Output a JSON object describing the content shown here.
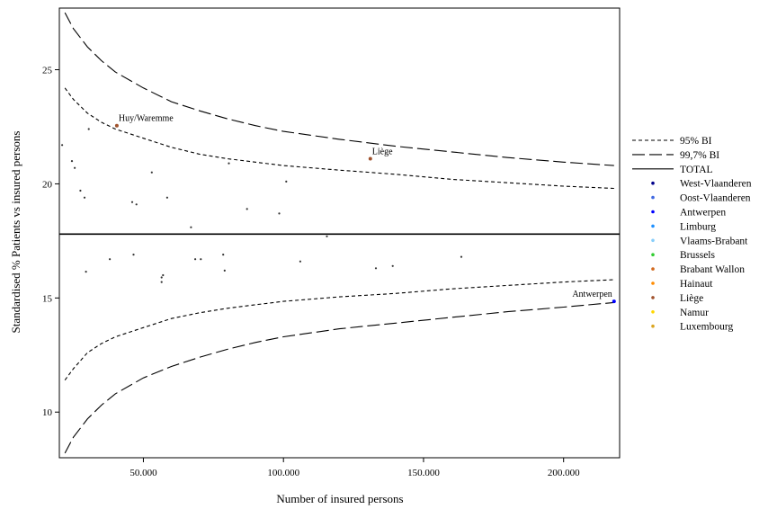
{
  "chart_data": {
    "type": "scatter",
    "title": "",
    "xlabel": "Number of insured persons",
    "ylabel": "Standardised % Patients vs insured persons",
    "xlim": [
      20000,
      220000
    ],
    "ylim": [
      8,
      27.7
    ],
    "x_ticks": [
      50000,
      100000,
      150000,
      200000
    ],
    "x_tick_labels": [
      "50.000",
      "100.000",
      "150.000",
      "200.000"
    ],
    "y_ticks": [
      10,
      15,
      20,
      25
    ],
    "y_tick_labels": [
      "10",
      "15",
      "20",
      "25"
    ],
    "grid": false,
    "legend_position": "right",
    "total": 17.8,
    "band_x": [
      22000,
      25000,
      30000,
      35000,
      40000,
      50000,
      60000,
      70000,
      80000,
      90000,
      100000,
      120000,
      140000,
      160000,
      180000,
      200000,
      218000
    ],
    "bands": {
      "upper_95": [
        24.2,
        23.7,
        23.1,
        22.7,
        22.4,
        22.0,
        21.6,
        21.3,
        21.1,
        20.95,
        20.8,
        20.6,
        20.42,
        20.2,
        20.05,
        19.9,
        19.8
      ],
      "lower_95": [
        11.4,
        11.9,
        12.6,
        13.0,
        13.3,
        13.7,
        14.1,
        14.35,
        14.55,
        14.7,
        14.85,
        15.05,
        15.2,
        15.4,
        15.55,
        15.7,
        15.8
      ],
      "upper_997": [
        27.5,
        26.8,
        26.0,
        25.4,
        24.9,
        24.2,
        23.6,
        23.2,
        22.85,
        22.55,
        22.3,
        21.95,
        21.65,
        21.4,
        21.15,
        20.95,
        20.8
      ],
      "lower_997": [
        8.2,
        8.9,
        9.7,
        10.3,
        10.8,
        11.5,
        12.0,
        12.4,
        12.75,
        13.05,
        13.3,
        13.65,
        13.9,
        14.15,
        14.4,
        14.6,
        14.8
      ]
    },
    "legend": [
      {
        "label": "95% BI",
        "kind": "line",
        "dash": "short"
      },
      {
        "label": "99,7% BI",
        "kind": "line",
        "dash": "long"
      },
      {
        "label": "TOTAL",
        "kind": "line",
        "dash": "solid"
      },
      {
        "label": "West-Vlaanderen",
        "kind": "point",
        "color": "#00008b"
      },
      {
        "label": "Oost-Vlaanderen",
        "kind": "point",
        "color": "#4169e1"
      },
      {
        "label": "Antwerpen",
        "kind": "point",
        "color": "#0000ff"
      },
      {
        "label": "Limburg",
        "kind": "point",
        "color": "#1e90ff"
      },
      {
        "label": "Vlaams-Brabant",
        "kind": "point",
        "color": "#87cefa"
      },
      {
        "label": "Brussels",
        "kind": "point",
        "color": "#32cd32"
      },
      {
        "label": "Brabant Wallon",
        "kind": "point",
        "color": "#d2691e"
      },
      {
        "label": "Hainaut",
        "kind": "point",
        "color": "#ff8c00"
      },
      {
        "label": "Liège",
        "kind": "point",
        "color": "#a0522d"
      },
      {
        "label": "Namur",
        "kind": "point",
        "color": "#ffd700"
      },
      {
        "label": "Luxembourg",
        "kind": "point",
        "color": "#daa520"
      }
    ],
    "highlighted": [
      {
        "label": "Huy/Waremme",
        "x": 40500,
        "y": 22.55,
        "color": "#a0522d"
      },
      {
        "label": "Liège",
        "x": 131000,
        "y": 21.1,
        "color": "#a0522d"
      },
      {
        "label": "Antwerpen",
        "x": 218000,
        "y": 14.85,
        "color": "#0000ff"
      }
    ],
    "points": [
      {
        "x": 21000,
        "y": 21.7
      },
      {
        "x": 24500,
        "y": 21.0
      },
      {
        "x": 25500,
        "y": 20.7
      },
      {
        "x": 27500,
        "y": 19.7
      },
      {
        "x": 29000,
        "y": 19.4
      },
      {
        "x": 30500,
        "y": 22.4
      },
      {
        "x": 29500,
        "y": 16.15
      },
      {
        "x": 38000,
        "y": 16.7
      },
      {
        "x": 46000,
        "y": 19.2
      },
      {
        "x": 47500,
        "y": 19.1
      },
      {
        "x": 46500,
        "y": 16.9
      },
      {
        "x": 53000,
        "y": 20.5
      },
      {
        "x": 56500,
        "y": 15.9
      },
      {
        "x": 56500,
        "y": 15.7
      },
      {
        "x": 57000,
        "y": 16.0
      },
      {
        "x": 58500,
        "y": 19.4
      },
      {
        "x": 67000,
        "y": 18.1
      },
      {
        "x": 68500,
        "y": 16.7
      },
      {
        "x": 70500,
        "y": 16.7
      },
      {
        "x": 78500,
        "y": 16.9
      },
      {
        "x": 79000,
        "y": 16.2
      },
      {
        "x": 80500,
        "y": 20.9
      },
      {
        "x": 87000,
        "y": 18.9
      },
      {
        "x": 98500,
        "y": 18.7
      },
      {
        "x": 101000,
        "y": 20.1
      },
      {
        "x": 106000,
        "y": 16.6
      },
      {
        "x": 115500,
        "y": 17.7
      },
      {
        "x": 133000,
        "y": 16.3
      },
      {
        "x": 139000,
        "y": 16.4
      },
      {
        "x": 163500,
        "y": 16.8
      }
    ]
  }
}
